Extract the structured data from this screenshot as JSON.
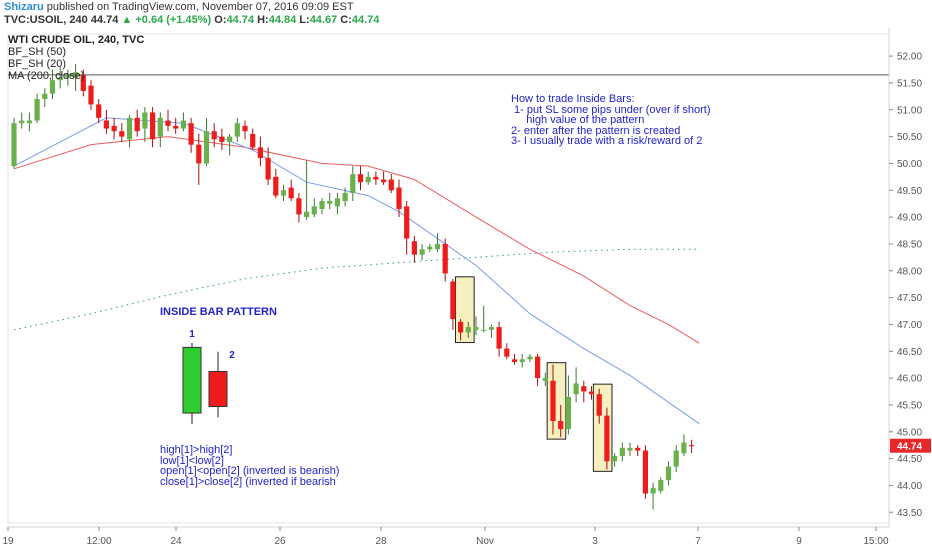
{
  "header": {
    "author": "Shizaru",
    "published_text": "published on TradingView.com, November 07, 2016 09:09 EST",
    "symbol": "TVC:USOIL, 240",
    "last": "44.74",
    "change_arrow": "▲",
    "change": "+0.64 (+1.45%)",
    "o_label": "O:",
    "o": "44.74",
    "h_label": "H:",
    "h": "44.84",
    "l_label": "L:",
    "l": "44.67",
    "c_label": "C:",
    "c": "44.74"
  },
  "legend": {
    "title": "WTI CRUDE OIL, 240, TVC",
    "studies": [
      "BF_SH (50)",
      "BF_SH (20)",
      "MA (200, close)"
    ]
  },
  "notes": {
    "how_to": [
      "How to trade Inside Bars:",
      " 1- put SL some pips under (over if short)",
      "     high value of the pattern",
      "2- enter after the pattern is created",
      "3- I usually trade with a risk/reward of 2"
    ],
    "pattern_title": "INSIDE BAR PATTERN",
    "bar1_label": "1",
    "bar2_label": "2",
    "rules": [
      "high[1]>high[2]",
      "low[1]<low[2]",
      "open[1]<open[2] (inverted is bearish)",
      "close[1]>close[2] (inverted if bearish"
    ]
  },
  "colors": {
    "bull": "#6ab04c",
    "bear": "#ee1c1c",
    "ma20": "#7b9bef",
    "ma50": "#ef5b5b",
    "ma200": "#2a9d8f",
    "note_blue": "#2323c8",
    "highlight": "#f6f0c0",
    "price_badge": "#e82828"
  },
  "chart_data": {
    "type": "candlestick",
    "title": "WTI CRUDE OIL, 240, TVC",
    "y_range": [
      43.3,
      52.3
    ],
    "y_ticks": [
      "52.00",
      "51.50",
      "51.00",
      "50.50",
      "50.00",
      "49.50",
      "49.00",
      "48.50",
      "48.00",
      "47.50",
      "47.00",
      "46.50",
      "46.00",
      "45.50",
      "45.00",
      "44.50",
      "44.00",
      "43.50"
    ],
    "x_ticks": [
      "19",
      "12:00",
      "24",
      "26",
      "28",
      "Nov",
      "3",
      "7",
      "9",
      "15:00"
    ],
    "last_price_label": "44.74",
    "horizontal_level": 51.65,
    "candles": [
      {
        "o": 49.95,
        "h": 50.85,
        "l": 49.9,
        "c": 50.75
      },
      {
        "o": 50.75,
        "h": 50.95,
        "l": 50.65,
        "c": 50.8
      },
      {
        "o": 50.75,
        "h": 50.95,
        "l": 50.6,
        "c": 50.8
      },
      {
        "o": 50.8,
        "h": 51.3,
        "l": 50.75,
        "c": 51.2
      },
      {
        "o": 51.2,
        "h": 51.4,
        "l": 51.05,
        "c": 51.3
      },
      {
        "o": 51.3,
        "h": 51.75,
        "l": 51.2,
        "c": 51.55
      },
      {
        "o": 51.55,
        "h": 51.8,
        "l": 51.4,
        "c": 51.6
      },
      {
        "o": 51.6,
        "h": 51.75,
        "l": 51.45,
        "c": 51.65
      },
      {
        "o": 51.6,
        "h": 51.85,
        "l": 51.35,
        "c": 51.7
      },
      {
        "o": 51.65,
        "h": 51.75,
        "l": 51.25,
        "c": 51.35
      },
      {
        "o": 51.45,
        "h": 51.55,
        "l": 51.0,
        "c": 51.1
      },
      {
        "o": 51.1,
        "h": 51.2,
        "l": 50.75,
        "c": 50.85
      },
      {
        "o": 50.8,
        "h": 51.0,
        "l": 50.55,
        "c": 50.65
      },
      {
        "o": 50.7,
        "h": 50.85,
        "l": 50.45,
        "c": 50.6
      },
      {
        "o": 50.6,
        "h": 50.75,
        "l": 50.4,
        "c": 50.5
      },
      {
        "o": 50.45,
        "h": 50.9,
        "l": 50.3,
        "c": 50.85
      },
      {
        "o": 50.85,
        "h": 51.0,
        "l": 50.5,
        "c": 50.6
      },
      {
        "o": 50.65,
        "h": 51.05,
        "l": 50.4,
        "c": 50.95
      },
      {
        "o": 50.95,
        "h": 51.05,
        "l": 50.3,
        "c": 50.45
      },
      {
        "o": 50.5,
        "h": 50.95,
        "l": 50.3,
        "c": 50.85
      },
      {
        "o": 50.8,
        "h": 51.0,
        "l": 50.6,
        "c": 50.7
      },
      {
        "o": 50.7,
        "h": 50.85,
        "l": 50.55,
        "c": 50.65
      },
      {
        "o": 50.65,
        "h": 50.95,
        "l": 50.6,
        "c": 50.8
      },
      {
        "o": 50.75,
        "h": 50.85,
        "l": 50.2,
        "c": 50.35
      },
      {
        "o": 50.35,
        "h": 50.55,
        "l": 49.6,
        "c": 50.0
      },
      {
        "o": 50.0,
        "h": 50.85,
        "l": 49.95,
        "c": 50.6
      },
      {
        "o": 50.6,
        "h": 50.75,
        "l": 50.3,
        "c": 50.45
      },
      {
        "o": 50.5,
        "h": 50.65,
        "l": 50.25,
        "c": 50.4
      },
      {
        "o": 50.4,
        "h": 50.55,
        "l": 50.15,
        "c": 50.5
      },
      {
        "o": 50.5,
        "h": 50.85,
        "l": 50.4,
        "c": 50.75
      },
      {
        "o": 50.7,
        "h": 50.8,
        "l": 50.45,
        "c": 50.6
      },
      {
        "o": 50.55,
        "h": 50.65,
        "l": 50.25,
        "c": 50.3
      },
      {
        "o": 50.3,
        "h": 50.5,
        "l": 49.95,
        "c": 50.1
      },
      {
        "o": 50.1,
        "h": 50.3,
        "l": 49.6,
        "c": 49.7
      },
      {
        "o": 49.75,
        "h": 49.9,
        "l": 49.35,
        "c": 49.4
      },
      {
        "o": 49.4,
        "h": 49.6,
        "l": 49.3,
        "c": 49.5
      },
      {
        "o": 49.55,
        "h": 49.7,
        "l": 49.3,
        "c": 49.35
      },
      {
        "o": 49.35,
        "h": 49.45,
        "l": 48.9,
        "c": 49.05
      },
      {
        "o": 49.0,
        "h": 50.05,
        "l": 48.95,
        "c": 49.1
      },
      {
        "o": 49.05,
        "h": 49.35,
        "l": 49.0,
        "c": 49.2
      },
      {
        "o": 49.15,
        "h": 49.35,
        "l": 49.05,
        "c": 49.3
      },
      {
        "o": 49.25,
        "h": 49.45,
        "l": 49.15,
        "c": 49.3
      },
      {
        "o": 49.2,
        "h": 49.45,
        "l": 49.05,
        "c": 49.35
      },
      {
        "o": 49.3,
        "h": 49.55,
        "l": 49.2,
        "c": 49.45
      },
      {
        "o": 49.45,
        "h": 49.95,
        "l": 49.3,
        "c": 49.8
      },
      {
        "o": 49.8,
        "h": 49.95,
        "l": 49.5,
        "c": 49.65
      },
      {
        "o": 49.65,
        "h": 49.85,
        "l": 49.6,
        "c": 49.75
      },
      {
        "o": 49.75,
        "h": 49.85,
        "l": 49.6,
        "c": 49.7
      },
      {
        "o": 49.7,
        "h": 49.85,
        "l": 49.6,
        "c": 49.65
      },
      {
        "o": 49.7,
        "h": 49.8,
        "l": 49.45,
        "c": 49.5
      },
      {
        "o": 49.55,
        "h": 49.7,
        "l": 49.0,
        "c": 49.15
      },
      {
        "o": 49.2,
        "h": 49.3,
        "l": 48.3,
        "c": 48.6
      },
      {
        "o": 48.55,
        "h": 48.65,
        "l": 48.15,
        "c": 48.3
      },
      {
        "o": 48.3,
        "h": 48.5,
        "l": 48.2,
        "c": 48.4
      },
      {
        "o": 48.4,
        "h": 48.5,
        "l": 48.35,
        "c": 48.45
      },
      {
        "o": 48.4,
        "h": 48.7,
        "l": 48.35,
        "c": 48.5
      },
      {
        "o": 48.5,
        "h": 48.6,
        "l": 47.8,
        "c": 47.95
      },
      {
        "o": 47.8,
        "h": 47.85,
        "l": 46.9,
        "c": 47.1
      },
      {
        "o": 47.05,
        "h": 47.1,
        "l": 46.7,
        "c": 46.85
      },
      {
        "o": 46.85,
        "h": 47.05,
        "l": 46.75,
        "c": 46.95
      },
      {
        "o": 46.9,
        "h": 47.15,
        "l": 46.8,
        "c": 46.95
      },
      {
        "o": 46.9,
        "h": 47.35,
        "l": 46.85,
        "c": 46.9
      },
      {
        "o": 46.9,
        "h": 47.0,
        "l": 46.75,
        "c": 46.95
      },
      {
        "o": 46.95,
        "h": 47.05,
        "l": 46.4,
        "c": 46.55
      },
      {
        "o": 46.55,
        "h": 46.65,
        "l": 46.35,
        "c": 46.4
      },
      {
        "o": 46.35,
        "h": 46.45,
        "l": 46.25,
        "c": 46.3
      },
      {
        "o": 46.3,
        "h": 46.45,
        "l": 46.2,
        "c": 46.35
      },
      {
        "o": 46.35,
        "h": 46.45,
        "l": 46.3,
        "c": 46.4
      },
      {
        "o": 46.4,
        "h": 46.45,
        "l": 45.85,
        "c": 46.0
      },
      {
        "o": 45.95,
        "h": 46.1,
        "l": 45.85,
        "c": 46.0
      },
      {
        "o": 45.95,
        "h": 46.25,
        "l": 44.95,
        "c": 45.2
      },
      {
        "o": 45.2,
        "h": 45.5,
        "l": 44.9,
        "c": 45.05
      },
      {
        "o": 45.05,
        "h": 46.05,
        "l": 44.95,
        "c": 45.65
      },
      {
        "o": 45.7,
        "h": 46.2,
        "l": 45.55,
        "c": 45.9
      },
      {
        "o": 45.85,
        "h": 45.95,
        "l": 45.55,
        "c": 45.75
      },
      {
        "o": 45.75,
        "h": 45.85,
        "l": 45.6,
        "c": 45.7
      },
      {
        "o": 45.7,
        "h": 45.8,
        "l": 45.15,
        "c": 45.3
      },
      {
        "o": 45.3,
        "h": 45.45,
        "l": 44.3,
        "c": 44.45
      },
      {
        "o": 44.45,
        "h": 44.6,
        "l": 44.35,
        "c": 44.55
      },
      {
        "o": 44.55,
        "h": 44.8,
        "l": 44.45,
        "c": 44.7
      },
      {
        "o": 44.65,
        "h": 44.8,
        "l": 44.55,
        "c": 44.7
      },
      {
        "o": 44.7,
        "h": 44.75,
        "l": 44.55,
        "c": 44.65
      },
      {
        "o": 44.65,
        "h": 44.75,
        "l": 43.75,
        "c": 43.85
      },
      {
        "o": 43.85,
        "h": 44.05,
        "l": 43.55,
        "c": 43.95
      },
      {
        "o": 43.9,
        "h": 44.15,
        "l": 43.85,
        "c": 44.1
      },
      {
        "o": 44.1,
        "h": 44.45,
        "l": 44.0,
        "c": 44.35
      },
      {
        "o": 44.35,
        "h": 44.75,
        "l": 44.25,
        "c": 44.65
      },
      {
        "o": 44.6,
        "h": 44.95,
        "l": 44.55,
        "c": 44.8
      },
      {
        "o": 44.75,
        "h": 44.85,
        "l": 44.6,
        "c": 44.74
      }
    ],
    "ma20": [
      [
        0,
        49.95
      ],
      [
        12,
        50.85
      ],
      [
        22,
        50.75
      ],
      [
        31,
        50.25
      ],
      [
        38,
        49.65
      ],
      [
        46,
        49.4
      ],
      [
        50,
        49.1
      ],
      [
        60,
        48.1
      ],
      [
        67,
        47.2
      ],
      [
        74,
        46.55
      ],
      [
        80,
        46.05
      ],
      [
        85,
        45.55
      ],
      [
        89,
        45.15
      ]
    ],
    "ma50": [
      [
        0,
        49.9
      ],
      [
        10,
        50.35
      ],
      [
        20,
        50.5
      ],
      [
        30,
        50.3
      ],
      [
        40,
        50.0
      ],
      [
        46,
        49.95
      ],
      [
        52,
        49.7
      ],
      [
        60,
        49.0
      ],
      [
        67,
        48.4
      ],
      [
        74,
        47.9
      ],
      [
        80,
        47.35
      ],
      [
        85,
        47.0
      ],
      [
        89,
        46.65
      ]
    ],
    "ma200": [
      [
        0,
        46.9
      ],
      [
        10,
        47.2
      ],
      [
        20,
        47.55
      ],
      [
        30,
        47.85
      ],
      [
        40,
        48.05
      ],
      [
        50,
        48.15
      ],
      [
        60,
        48.25
      ],
      [
        70,
        48.35
      ],
      [
        80,
        48.4
      ],
      [
        89,
        48.4
      ]
    ],
    "inside_bar_boxes": [
      [
        57.6,
        59.5
      ],
      [
        69.5,
        71.4
      ],
      [
        75.5,
        77.4
      ]
    ],
    "example_bars": [
      {
        "label": "1",
        "o": 45.05,
        "h": 46.65,
        "l": 44.8,
        "c": 46.55
      },
      {
        "label": "2",
        "o": 46.0,
        "h": 46.45,
        "l": 44.95,
        "c": 45.2
      }
    ]
  }
}
